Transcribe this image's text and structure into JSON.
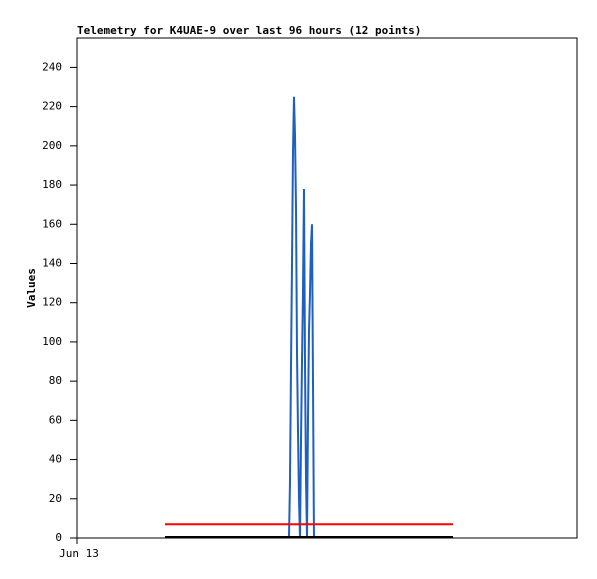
{
  "chart_data": {
    "type": "line",
    "title": "Telemetry for K4UAE-9 over last 96 hours (12 points)",
    "y_label": "Values",
    "xlim": [
      0,
      96
    ],
    "xticks": [
      {
        "value": 0,
        "label": "Jun 13"
      }
    ],
    "ylim": [
      0,
      255
    ],
    "yticks": [
      0,
      20,
      40,
      60,
      80,
      100,
      120,
      140,
      160,
      180,
      200,
      220,
      240
    ],
    "grid": false,
    "series": [
      {
        "color": "#1f5fbf",
        "x": [
          40.7,
          40.89,
          41.08,
          41.28,
          41.47,
          41.66,
          41.86,
          42.05,
          42.24,
          42.43,
          42.62,
          42.82,
          43.01,
          43.2,
          43.39,
          43.58,
          43.78,
          43.97,
          44.16,
          44.35,
          44.54,
          44.74,
          44.93,
          45.12,
          45.31,
          45.5
        ],
        "values": [
          0,
          28,
          85,
          140,
          197,
          225,
          205,
          168,
          95,
          55,
          20,
          0,
          50,
          90,
          125,
          178,
          88,
          30,
          0,
          60,
          105,
          125,
          150,
          160,
          80,
          0
        ]
      },
      {
        "color": "#ff0000",
        "x": [
          16.9,
          72.2
        ],
        "values": [
          7,
          7
        ]
      },
      {
        "color": "#000000",
        "x": [
          16.9,
          72.2
        ],
        "values": [
          0.5,
          0.5
        ]
      }
    ]
  }
}
